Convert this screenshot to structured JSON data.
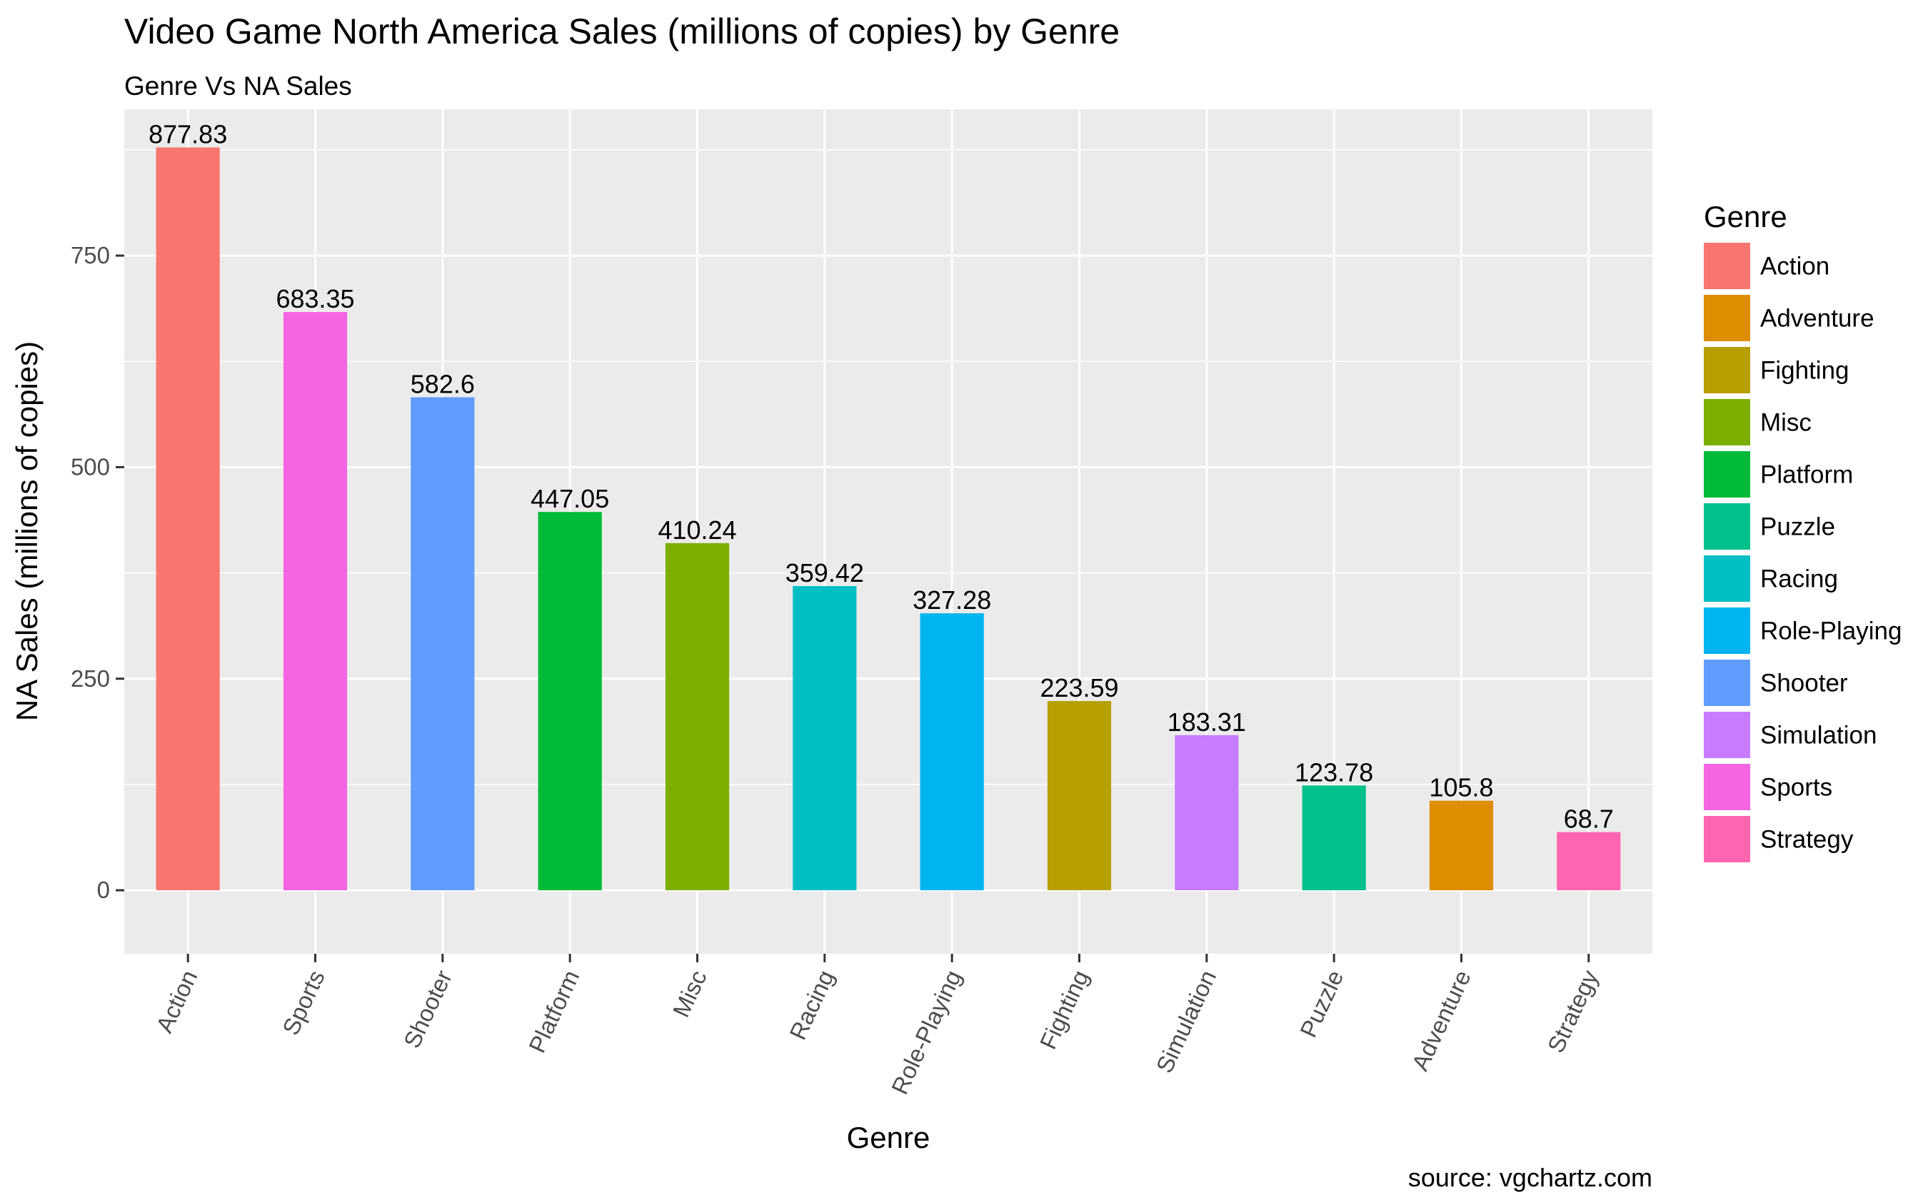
{
  "chart_data": {
    "type": "bar",
    "title": "Video Game North America Sales (millions of copies) by Genre",
    "subtitle": "Genre Vs NA Sales",
    "xlabel": "Genre",
    "ylabel": "NA Sales (millions of copies)",
    "caption": "source: vgchartz.com",
    "ylim": [
      -75,
      923
    ],
    "yticks": [
      0,
      250,
      500,
      750
    ],
    "grid": true,
    "legend": {
      "title": "Genre",
      "placement": "right"
    },
    "categories": [
      "Action",
      "Sports",
      "Shooter",
      "Platform",
      "Misc",
      "Racing",
      "Role-Playing",
      "Fighting",
      "Simulation",
      "Puzzle",
      "Adventure",
      "Strategy"
    ],
    "values": [
      877.83,
      683.35,
      582.6,
      447.05,
      410.24,
      359.42,
      327.28,
      223.59,
      183.31,
      123.78,
      105.8,
      68.7
    ],
    "data_labels": [
      "877.83",
      "683.35",
      "582.6",
      "447.05",
      "410.24",
      "359.42",
      "327.28",
      "223.59",
      "183.31",
      "123.78",
      "105.8",
      "68.7"
    ],
    "legend_entries": [
      {
        "name": "Action",
        "color": "#F8766D"
      },
      {
        "name": "Adventure",
        "color": "#DE8C00"
      },
      {
        "name": "Fighting",
        "color": "#B79F00"
      },
      {
        "name": "Misc",
        "color": "#7CAE00"
      },
      {
        "name": "Platform",
        "color": "#00BA38"
      },
      {
        "name": "Puzzle",
        "color": "#00C08B"
      },
      {
        "name": "Racing",
        "color": "#00BFC4"
      },
      {
        "name": "Role-Playing",
        "color": "#00B4F0"
      },
      {
        "name": "Shooter",
        "color": "#619CFF"
      },
      {
        "name": "Simulation",
        "color": "#C77CFF"
      },
      {
        "name": "Sports",
        "color": "#F564E3"
      },
      {
        "name": "Strategy",
        "color": "#FF64B0"
      }
    ],
    "panel_color": "#EBEBEB",
    "grid_color": "#FFFFFF"
  }
}
